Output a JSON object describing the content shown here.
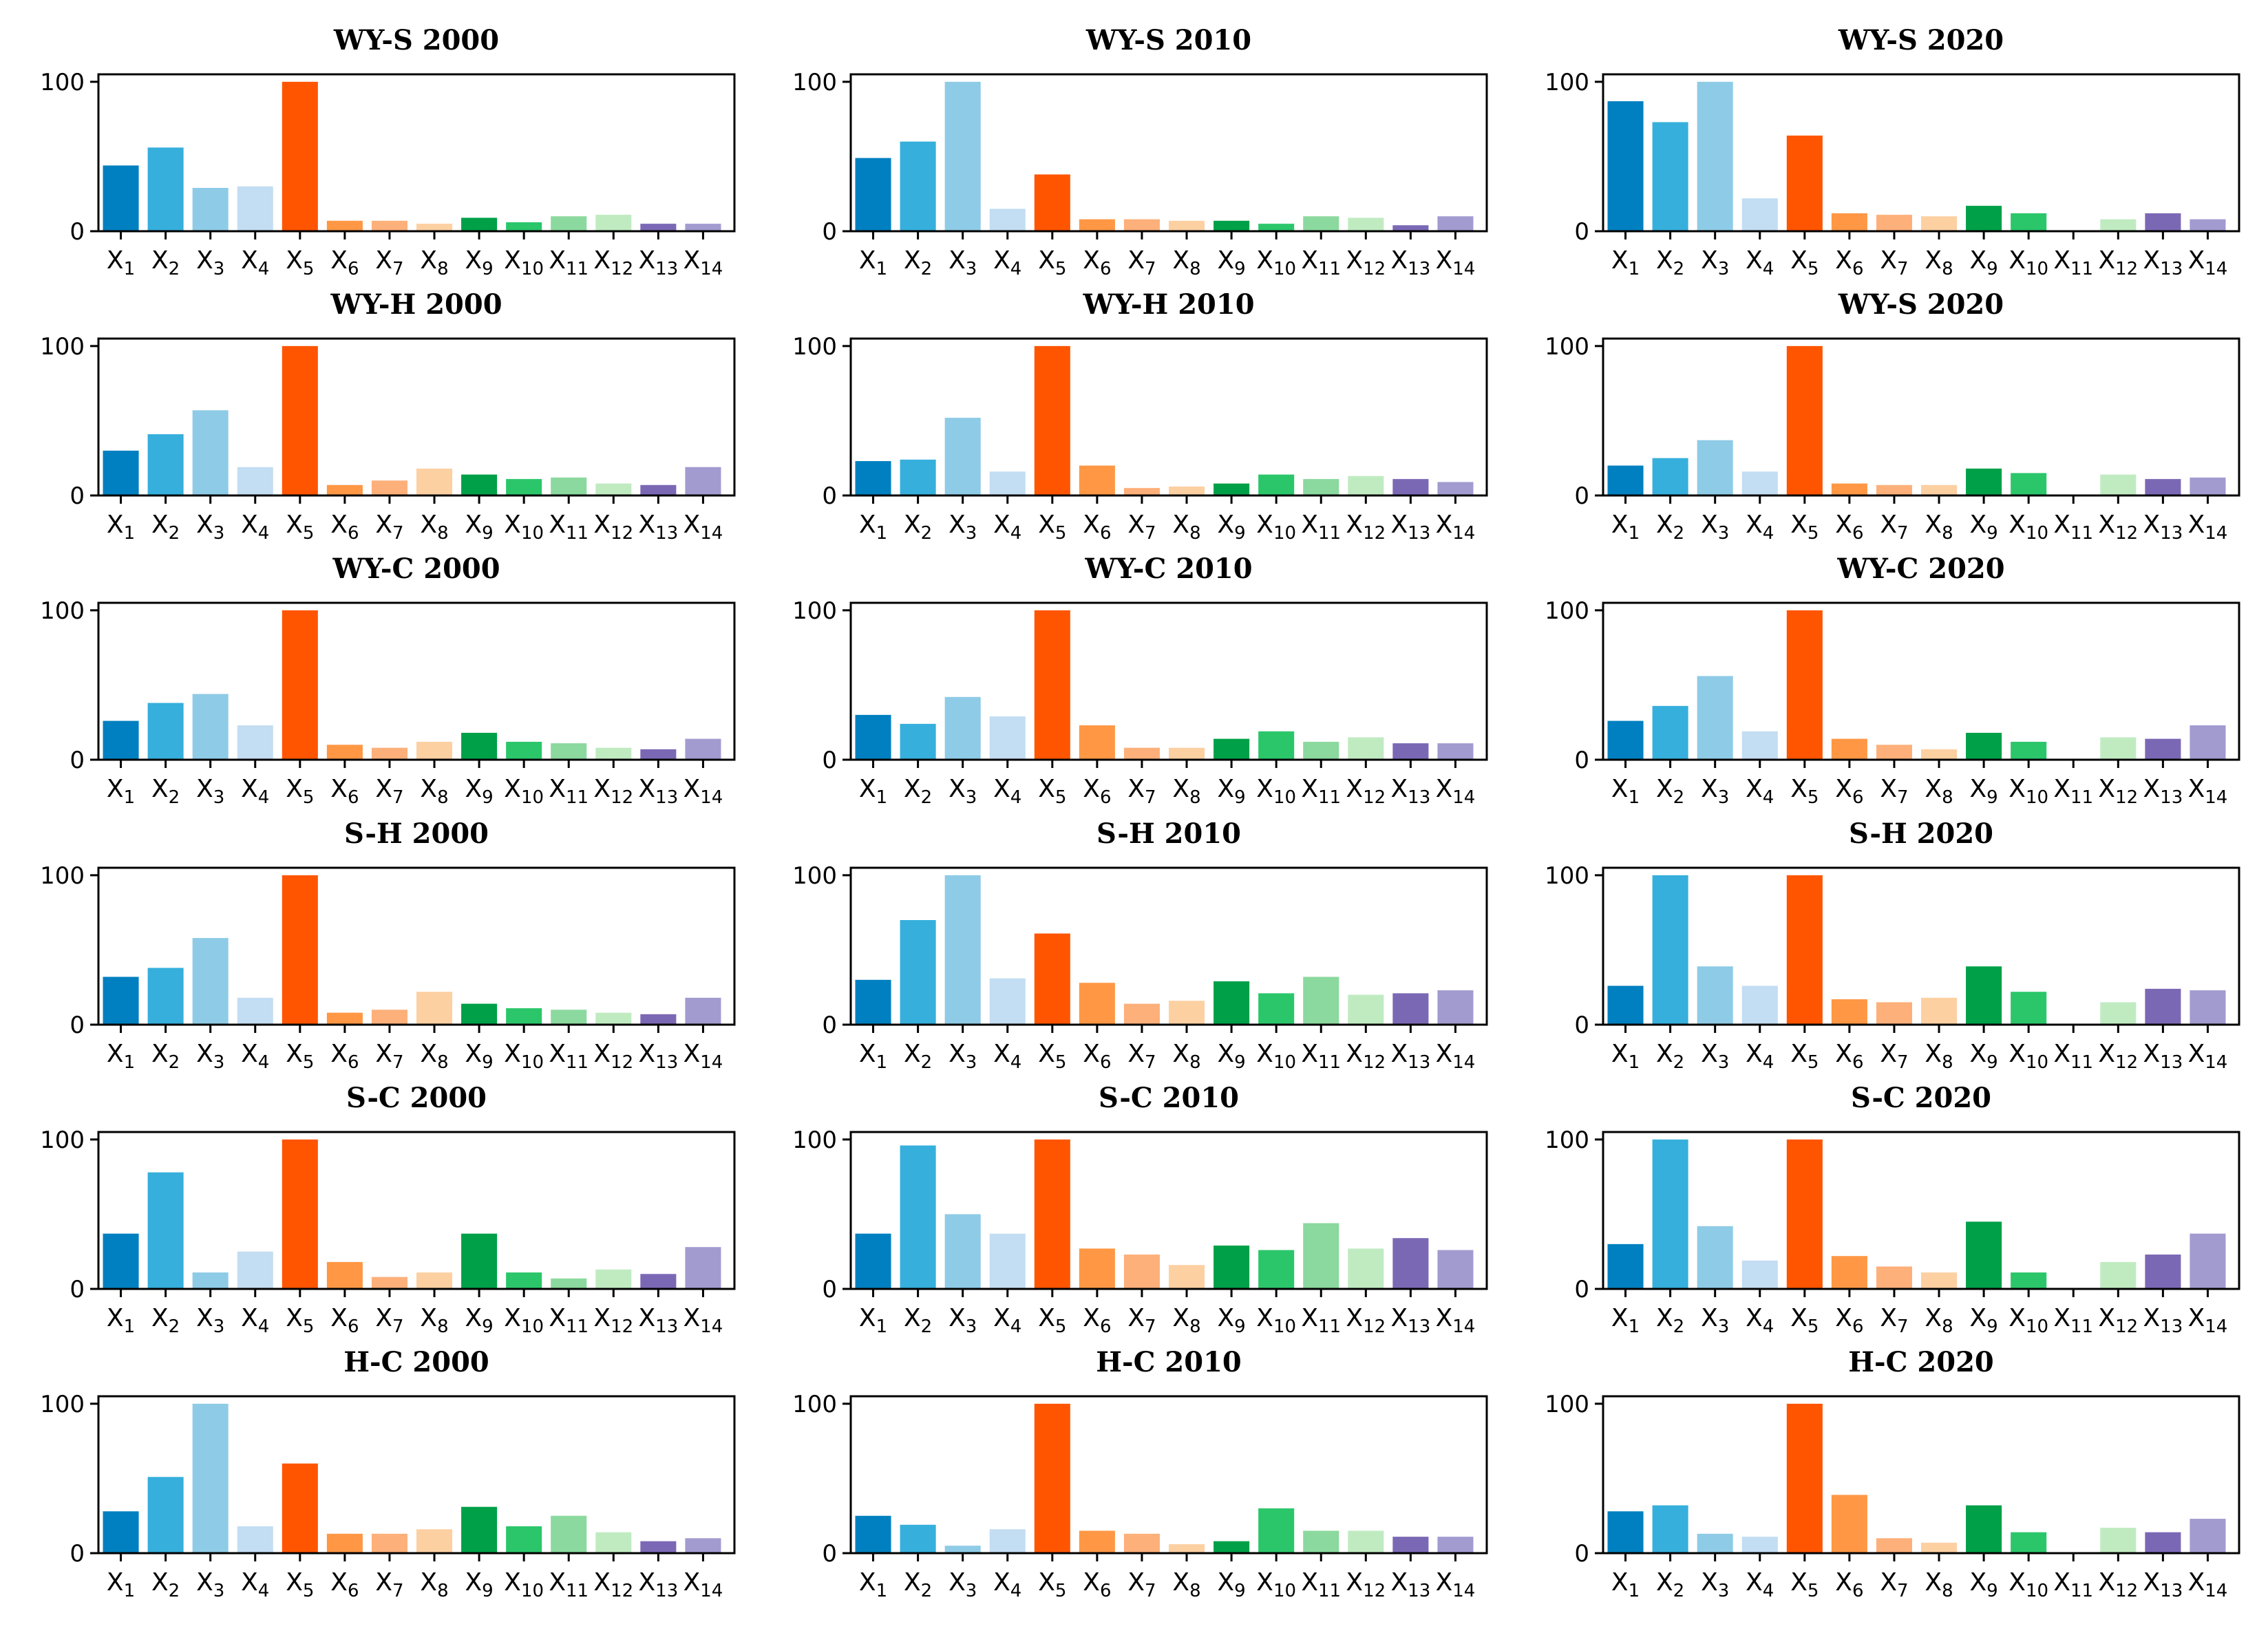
{
  "colors": [
    "#0080c0",
    "#36afdc",
    "#8ecbe6",
    "#c3ddf2",
    "#ff5500",
    "#ff9744",
    "#fdb07a",
    "#fdd0a2",
    "#00a048",
    "#2bc66a",
    "#8bd99e",
    "#c0ebc1",
    "#7b68b5",
    "#a19bd0"
  ],
  "chart_data": [
    {
      "type": "bar",
      "title": "WY-S 2000",
      "categories": [
        "X1",
        "X2",
        "X3",
        "X4",
        "X5",
        "X6",
        "X7",
        "X8",
        "X9",
        "X10",
        "X11",
        "X12",
        "X13",
        "X14"
      ],
      "values": [
        44,
        56,
        29,
        30,
        100,
        7,
        7,
        5,
        9,
        6,
        10,
        11,
        5,
        5
      ],
      "yticks": [
        "0",
        "100"
      ],
      "ylim": [
        0,
        105
      ]
    },
    {
      "type": "bar",
      "title": "WY-S 2010",
      "categories": [
        "X1",
        "X2",
        "X3",
        "X4",
        "X5",
        "X6",
        "X7",
        "X8",
        "X9",
        "X10",
        "X11",
        "X12",
        "X13",
        "X14"
      ],
      "values": [
        49,
        60,
        100,
        15,
        38,
        8,
        8,
        7,
        7,
        5,
        10,
        9,
        4,
        10
      ],
      "yticks": [
        "0",
        "100"
      ],
      "ylim": [
        0,
        105
      ]
    },
    {
      "type": "bar",
      "title": "WY-S 2020",
      "categories": [
        "X1",
        "X2",
        "X3",
        "X4",
        "X5",
        "X6",
        "X7",
        "X8",
        "X9",
        "X10",
        "X11",
        "X12",
        "X13",
        "X14"
      ],
      "values": [
        87,
        73,
        100,
        22,
        64,
        12,
        11,
        10,
        17,
        12,
        0,
        8,
        12,
        8
      ],
      "yticks": [
        "0",
        "100"
      ],
      "ylim": [
        0,
        105
      ]
    },
    {
      "type": "bar",
      "title": "WY-H 2000",
      "categories": [
        "X1",
        "X2",
        "X3",
        "X4",
        "X5",
        "X6",
        "X7",
        "X8",
        "X9",
        "X10",
        "X11",
        "X12",
        "X13",
        "X14"
      ],
      "values": [
        30,
        41,
        57,
        19,
        100,
        7,
        10,
        18,
        14,
        11,
        12,
        8,
        7,
        19
      ],
      "yticks": [
        "0",
        "100"
      ],
      "ylim": [
        0,
        105
      ]
    },
    {
      "type": "bar",
      "title": "WY-H 2010",
      "categories": [
        "X1",
        "X2",
        "X3",
        "X4",
        "X5",
        "X6",
        "X7",
        "X8",
        "X9",
        "X10",
        "X11",
        "X12",
        "X13",
        "X14"
      ],
      "values": [
        23,
        24,
        52,
        16,
        100,
        20,
        5,
        6,
        8,
        14,
        11,
        13,
        11,
        9
      ],
      "yticks": [
        "0",
        "100"
      ],
      "ylim": [
        0,
        105
      ]
    },
    {
      "type": "bar",
      "title": "WY-S 2020",
      "categories": [
        "X1",
        "X2",
        "X3",
        "X4",
        "X5",
        "X6",
        "X7",
        "X8",
        "X9",
        "X10",
        "X11",
        "X12",
        "X13",
        "X14"
      ],
      "values": [
        20,
        25,
        37,
        16,
        100,
        8,
        7,
        7,
        18,
        15,
        0,
        14,
        11,
        12
      ],
      "yticks": [
        "0",
        "100"
      ],
      "ylim": [
        0,
        105
      ]
    },
    {
      "type": "bar",
      "title": "WY-C 2000",
      "categories": [
        "X1",
        "X2",
        "X3",
        "X4",
        "X5",
        "X6",
        "X7",
        "X8",
        "X9",
        "X10",
        "X11",
        "X12",
        "X13",
        "X14"
      ],
      "values": [
        26,
        38,
        44,
        23,
        100,
        10,
        8,
        12,
        18,
        12,
        11,
        8,
        7,
        14
      ],
      "yticks": [
        "0",
        "100"
      ],
      "ylim": [
        0,
        105
      ]
    },
    {
      "type": "bar",
      "title": "WY-C 2010",
      "categories": [
        "X1",
        "X2",
        "X3",
        "X4",
        "X5",
        "X6",
        "X7",
        "X8",
        "X9",
        "X10",
        "X11",
        "X12",
        "X13",
        "X14"
      ],
      "values": [
        30,
        24,
        42,
        29,
        100,
        23,
        8,
        8,
        14,
        19,
        12,
        15,
        11,
        11
      ],
      "yticks": [
        "0",
        "100"
      ],
      "ylim": [
        0,
        105
      ]
    },
    {
      "type": "bar",
      "title": "WY-C 2020",
      "categories": [
        "X1",
        "X2",
        "X3",
        "X4",
        "X5",
        "X6",
        "X7",
        "X8",
        "X9",
        "X10",
        "X11",
        "X12",
        "X13",
        "X14"
      ],
      "values": [
        26,
        36,
        56,
        19,
        100,
        14,
        10,
        7,
        18,
        12,
        0,
        15,
        14,
        23
      ],
      "yticks": [
        "0",
        "100"
      ],
      "ylim": [
        0,
        105
      ]
    },
    {
      "type": "bar",
      "title": "S-H 2000",
      "categories": [
        "X1",
        "X2",
        "X3",
        "X4",
        "X5",
        "X6",
        "X7",
        "X8",
        "X9",
        "X10",
        "X11",
        "X12",
        "X13",
        "X14"
      ],
      "values": [
        32,
        38,
        58,
        18,
        100,
        8,
        10,
        22,
        14,
        11,
        10,
        8,
        7,
        18
      ],
      "yticks": [
        "0",
        "100"
      ],
      "ylim": [
        0,
        105
      ]
    },
    {
      "type": "bar",
      "title": "S-H 2010",
      "categories": [
        "X1",
        "X2",
        "X3",
        "X4",
        "X5",
        "X6",
        "X7",
        "X8",
        "X9",
        "X10",
        "X11",
        "X12",
        "X13",
        "X14"
      ],
      "values": [
        30,
        70,
        100,
        31,
        61,
        28,
        14,
        16,
        29,
        21,
        32,
        20,
        21,
        23
      ],
      "yticks": [
        "0",
        "100"
      ],
      "ylim": [
        0,
        105
      ]
    },
    {
      "type": "bar",
      "title": "S-H 2020",
      "categories": [
        "X1",
        "X2",
        "X3",
        "X4",
        "X5",
        "X6",
        "X7",
        "X8",
        "X9",
        "X10",
        "X11",
        "X12",
        "X13",
        "X14"
      ],
      "values": [
        26,
        100,
        39,
        26,
        100,
        17,
        15,
        18,
        39,
        22,
        0,
        15,
        24,
        23
      ],
      "yticks": [
        "0",
        "100"
      ],
      "ylim": [
        0,
        105
      ]
    },
    {
      "type": "bar",
      "title": "S-C 2000",
      "categories": [
        "X1",
        "X2",
        "X3",
        "X4",
        "X5",
        "X6",
        "X7",
        "X8",
        "X9",
        "X10",
        "X11",
        "X12",
        "X13",
        "X14"
      ],
      "values": [
        37,
        78,
        11,
        25,
        100,
        18,
        8,
        11,
        37,
        11,
        7,
        13,
        10,
        28
      ],
      "yticks": [
        "0",
        "100"
      ],
      "ylim": [
        0,
        105
      ]
    },
    {
      "type": "bar",
      "title": "S-C 2010",
      "categories": [
        "X1",
        "X2",
        "X3",
        "X4",
        "X5",
        "X6",
        "X7",
        "X8",
        "X9",
        "X10",
        "X11",
        "X12",
        "X13",
        "X14"
      ],
      "values": [
        37,
        96,
        50,
        37,
        100,
        27,
        23,
        16,
        29,
        26,
        44,
        27,
        34,
        26
      ],
      "yticks": [
        "0",
        "100"
      ],
      "ylim": [
        0,
        105
      ]
    },
    {
      "type": "bar",
      "title": "S-C 2020",
      "categories": [
        "X1",
        "X2",
        "X3",
        "X4",
        "X5",
        "X6",
        "X7",
        "X8",
        "X9",
        "X10",
        "X11",
        "X12",
        "X13",
        "X14"
      ],
      "values": [
        30,
        100,
        42,
        19,
        100,
        22,
        15,
        11,
        45,
        11,
        0,
        18,
        23,
        37
      ],
      "yticks": [
        "0",
        "100"
      ],
      "ylim": [
        0,
        105
      ]
    },
    {
      "type": "bar",
      "title": "H-C 2000",
      "categories": [
        "X1",
        "X2",
        "X3",
        "X4",
        "X5",
        "X6",
        "X7",
        "X8",
        "X9",
        "X10",
        "X11",
        "X12",
        "X13",
        "X14"
      ],
      "values": [
        28,
        51,
        100,
        18,
        60,
        13,
        13,
        16,
        31,
        18,
        25,
        14,
        8,
        10
      ],
      "yticks": [
        "0",
        "100"
      ],
      "ylim": [
        0,
        105
      ]
    },
    {
      "type": "bar",
      "title": "H-C 2010",
      "categories": [
        "X1",
        "X2",
        "X3",
        "X4",
        "X5",
        "X6",
        "X7",
        "X8",
        "X9",
        "X10",
        "X11",
        "X12",
        "X13",
        "X14"
      ],
      "values": [
        25,
        19,
        5,
        16,
        100,
        15,
        13,
        6,
        8,
        30,
        15,
        15,
        11,
        11
      ],
      "yticks": [
        "0",
        "100"
      ],
      "ylim": [
        0,
        105
      ]
    },
    {
      "type": "bar",
      "title": "H-C 2020",
      "categories": [
        "X1",
        "X2",
        "X3",
        "X4",
        "X5",
        "X6",
        "X7",
        "X8",
        "X9",
        "X10",
        "X11",
        "X12",
        "X13",
        "X14"
      ],
      "values": [
        28,
        32,
        13,
        11,
        100,
        39,
        10,
        7,
        32,
        14,
        0,
        17,
        14,
        23
      ],
      "yticks": [
        "0",
        "100"
      ],
      "ylim": [
        0,
        105
      ]
    }
  ]
}
